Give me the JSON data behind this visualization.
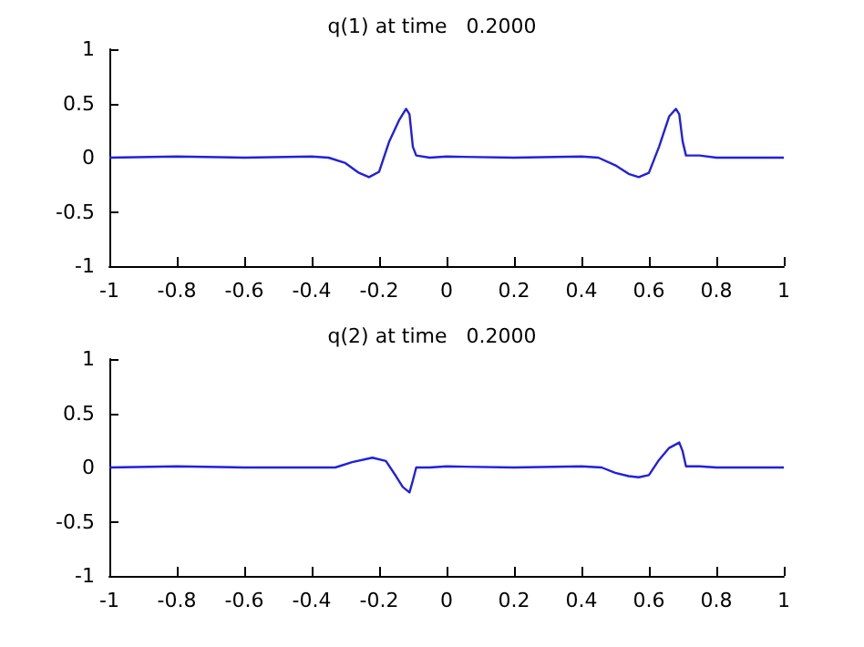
{
  "chart_data": [
    {
      "type": "line",
      "title": "q(1) at time   0.2000",
      "series": [
        {
          "color": "#2020e0",
          "x": [
            -1,
            -0.8,
            -0.6,
            -0.4,
            -0.35,
            -0.3,
            -0.26,
            -0.23,
            -0.2,
            -0.17,
            -0.14,
            -0.12,
            -0.11,
            -0.1,
            -0.09,
            -0.05,
            0,
            0.2,
            0.4,
            0.45,
            0.5,
            0.54,
            0.57,
            0.6,
            0.63,
            0.66,
            0.68,
            0.69,
            0.7,
            0.71,
            0.75,
            0.8,
            1
          ],
          "values": [
            0,
            0.01,
            0,
            0.01,
            0,
            -0.05,
            -0.14,
            -0.18,
            -0.13,
            0.15,
            0.35,
            0.45,
            0.4,
            0.1,
            0.02,
            0,
            0.01,
            0,
            0.01,
            0,
            -0.07,
            -0.15,
            -0.18,
            -0.14,
            0.1,
            0.38,
            0.45,
            0.4,
            0.15,
            0.02,
            0.02,
            0,
            0
          ]
        }
      ],
      "xlim": [
        -1,
        1
      ],
      "xticks": [
        -1,
        -0.8,
        -0.6,
        -0.4,
        -0.2,
        0,
        0.2,
        0.4,
        0.6,
        0.8,
        1
      ],
      "ylim": [
        -1,
        1
      ],
      "yticks": [
        -1,
        -0.5,
        0,
        0.5,
        1
      ],
      "grid": false,
      "marker": "none",
      "line_style": "solid"
    },
    {
      "type": "line",
      "title": "q(2) at time   0.2000",
      "series": [
        {
          "color": "#2020e0",
          "x": [
            -1,
            -0.8,
            -0.6,
            -0.4,
            -0.33,
            -0.28,
            -0.22,
            -0.18,
            -0.15,
            -0.13,
            -0.11,
            -0.1,
            -0.09,
            -0.05,
            0,
            0.2,
            0.4,
            0.46,
            0.5,
            0.54,
            0.57,
            0.6,
            0.63,
            0.66,
            0.69,
            0.7,
            0.71,
            0.75,
            0.8,
            1
          ],
          "values": [
            0,
            0.01,
            0,
            0,
            0,
            0.05,
            0.09,
            0.06,
            -0.08,
            -0.18,
            -0.23,
            -0.12,
            0,
            0,
            0.01,
            0,
            0.01,
            0,
            -0.05,
            -0.08,
            -0.09,
            -0.07,
            0.07,
            0.18,
            0.23,
            0.15,
            0.01,
            0.01,
            0,
            0
          ]
        }
      ],
      "xlim": [
        -1,
        1
      ],
      "xticks": [
        -1,
        -0.8,
        -0.6,
        -0.4,
        -0.2,
        0,
        0.2,
        0.4,
        0.6,
        0.8,
        1
      ],
      "ylim": [
        -1,
        1
      ],
      "yticks": [
        -1,
        -0.5,
        0,
        0.5,
        1
      ],
      "grid": false,
      "marker": "none",
      "line_style": "solid"
    }
  ]
}
